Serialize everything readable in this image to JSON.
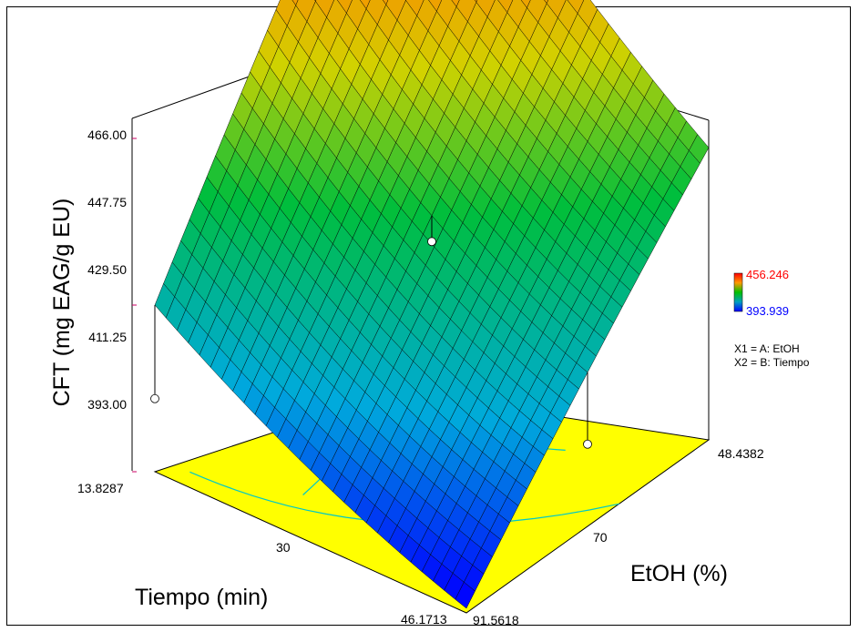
{
  "chart_data": {
    "type": "surface3d",
    "zlabel": "CFT  (mg EAG/g EU)",
    "xlabel": "Tiempo (min)",
    "ylabel": "EtOH (%)",
    "z_ticks": [
      "466.00",
      "447.75",
      "429.50",
      "411.25",
      "393.00"
    ],
    "x_ticks": [
      "13.8287",
      "30",
      "46.1713"
    ],
    "y_ticks": [
      "48.4382",
      "70",
      "91.5618"
    ],
    "zlim": [
      393.0,
      466.0
    ],
    "xlim": [
      13.8287,
      46.1713
    ],
    "ylim": [
      48.4382,
      91.5618
    ],
    "surface_corners": {
      "tiempo_low_etoh_high": 411.25,
      "tiempo_low_etoh_low": 466.0,
      "tiempo_high_etoh_low": 425.0,
      "tiempo_high_etoh_high": 393.5
    },
    "design_points": [
      {
        "tiempo": 30,
        "etoh": 48.4382,
        "cft": 456.0
      },
      {
        "tiempo": 46.1713,
        "etoh": 70,
        "cft": 402.0
      },
      {
        "tiempo": 13.8287,
        "etoh": 91.5618,
        "cft": 401.0
      },
      {
        "tiempo": 30,
        "etoh": 70,
        "cft": 419.0
      }
    ],
    "color_scale": {
      "max_label": "456.246",
      "min_label": "393.939",
      "max_color": "#ff0000",
      "min_color": "#0000ff"
    },
    "factor_legend": [
      "X1 = A: EtOH",
      "X2 = B: Tiempo"
    ],
    "floor_color": "#ffff00",
    "contour_color": "#00c8c8"
  }
}
